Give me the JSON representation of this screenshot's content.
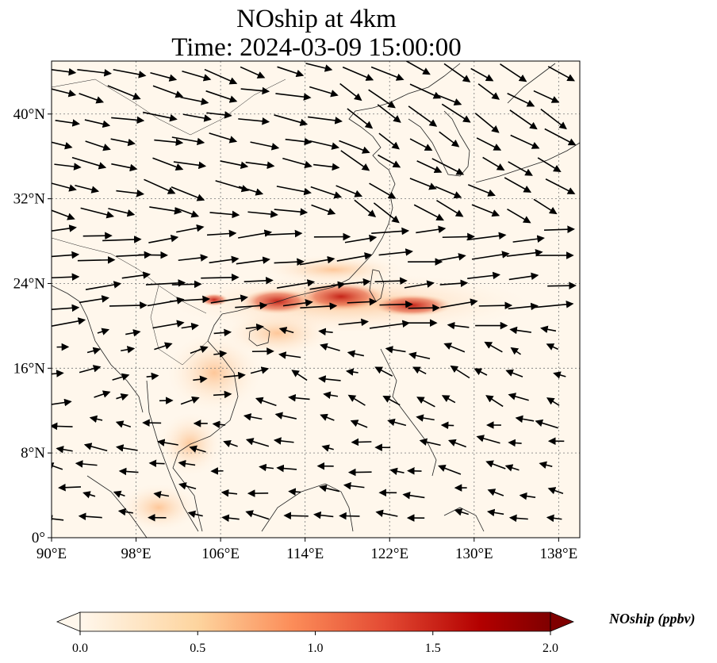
{
  "title": {
    "line1": "NOship at 4km",
    "line2": "Time: 2024-03-09 15:00:00"
  },
  "map": {
    "lon_range": [
      90,
      140
    ],
    "lat_range": [
      0,
      45
    ],
    "lon_ticks": [
      "90°E",
      "98°E",
      "106°E",
      "114°E",
      "122°E",
      "130°E",
      "138°E"
    ],
    "lat_ticks": [
      "0°",
      "8°N",
      "16°N",
      "24°N",
      "32°N",
      "40°N"
    ],
    "lon_tick_values": [
      90,
      98,
      106,
      114,
      122,
      130,
      138
    ],
    "lat_tick_values": [
      0,
      8,
      16,
      24,
      32,
      40
    ],
    "gridlines": true,
    "field_variable": "NOship",
    "colormap": "OrRd",
    "shipping_lane_max": 1.8,
    "background_colors": {
      "low": "#fff7ec",
      "mid": "#fdbb84",
      "high": "#d7301f",
      "max": "#7f0000"
    }
  },
  "colorbar": {
    "label": "NOship (ppbv)",
    "min": 0.0,
    "max": 2.0,
    "ticks": [
      "0.0",
      "0.5",
      "1.0",
      "1.5",
      "2.0"
    ],
    "tick_values": [
      0.0,
      0.5,
      1.0,
      1.5,
      2.0
    ],
    "extend": "both"
  }
}
